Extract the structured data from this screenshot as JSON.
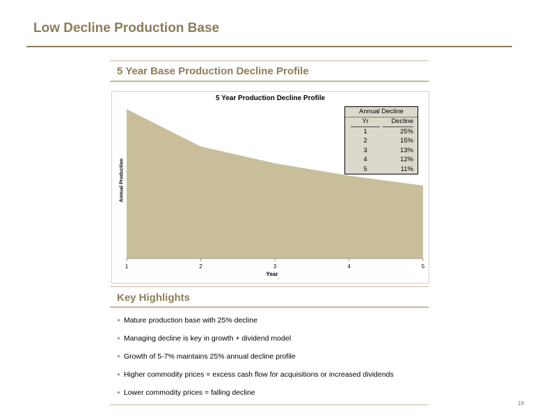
{
  "page": {
    "title": "Low Decline Production Base",
    "number": "18",
    "accent_color": "#8b7d57"
  },
  "profile_section": {
    "heading": "5 Year Base Production Decline Profile"
  },
  "chart_data": {
    "type": "area",
    "title": "5 Year Production Decline Profile",
    "xlabel": "Year",
    "ylabel": "Annual Production",
    "x": [
      "1",
      "2",
      "3",
      "4",
      "5"
    ],
    "series": [
      {
        "values": [
          1.0,
          0.75,
          0.6375,
          0.5546,
          0.4881
        ]
      }
    ],
    "ylim": [
      0,
      1.0
    ],
    "fill_color": "#c8bf9a",
    "grid": false,
    "table": {
      "title": "Annual Decline",
      "headers": [
        "Yr",
        "Decline"
      ],
      "rows": [
        [
          "1",
          "25%"
        ],
        [
          "2",
          "15%"
        ],
        [
          "3",
          "13%"
        ],
        [
          "4",
          "12%"
        ],
        [
          "5",
          "11%"
        ]
      ],
      "background_color": "#dcd8cb"
    }
  },
  "highlights_section": {
    "heading": "Key Highlights",
    "items": [
      "Mature production base with 25% decline",
      "Managing decline is key in growth + dividend model",
      "Growth of 5-7% maintains 25% annual decline profile",
      "Higher commodity prices = excess cash flow for acquisitions or increased dividends",
      "Lower commodity prices = falling decline"
    ]
  }
}
